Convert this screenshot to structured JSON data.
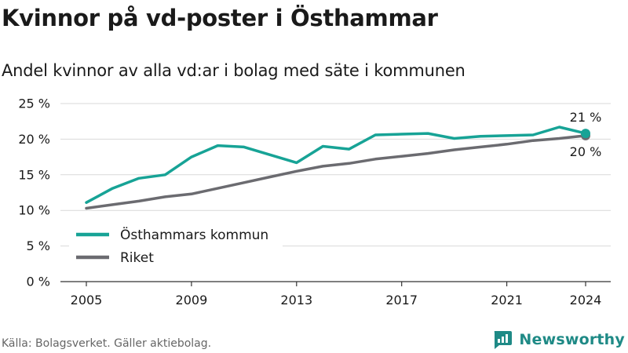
{
  "header": {
    "title": "Kvinnor på vd-poster i Östhammar",
    "subtitle": "Andel kvinnor av alla vd:ar i bolag med säte i kommunen"
  },
  "footer": {
    "source": "Källa: Bolagsverket. Gäller aktiebolag.",
    "brand": "Newsworthy"
  },
  "colors": {
    "osthammar": "#17a396",
    "riket": "#6b6b70",
    "grid": "#d9d9d9",
    "axis": "#333333",
    "text": "#1a1a1a"
  },
  "chart_data": {
    "type": "line",
    "title": "Kvinnor på vd-poster i Östhammar",
    "subtitle": "Andel kvinnor av alla vd:ar i bolag med säte i kommunen",
    "xlabel": "",
    "ylabel": "",
    "x": [
      2005,
      2006,
      2007,
      2008,
      2009,
      2010,
      2011,
      2012,
      2013,
      2014,
      2015,
      2016,
      2017,
      2018,
      2019,
      2020,
      2021,
      2022,
      2023,
      2024
    ],
    "xlim": [
      2005,
      2024
    ],
    "x_ticks": [
      2005,
      2009,
      2013,
      2017,
      2021,
      2024
    ],
    "ylim": [
      0,
      25
    ],
    "y_ticks": [
      0,
      5,
      10,
      15,
      20,
      25
    ],
    "y_tick_labels": [
      "0 %",
      "5 %",
      "10 %",
      "15 %",
      "20 %",
      "25 %"
    ],
    "grid": true,
    "legend_position": "bottom-left",
    "series": [
      {
        "name": "Östhammars kommun",
        "values": [
          11.1,
          13.1,
          14.5,
          15.0,
          17.5,
          19.1,
          18.9,
          17.8,
          16.7,
          19.0,
          18.6,
          20.6,
          20.7,
          20.8,
          20.1,
          20.4,
          20.5,
          20.6,
          21.7,
          20.8
        ],
        "end_label": "21 %",
        "end_marker": true
      },
      {
        "name": "Riket",
        "values": [
          10.3,
          10.8,
          11.3,
          11.9,
          12.3,
          13.1,
          13.9,
          14.7,
          15.5,
          16.2,
          16.6,
          17.2,
          17.6,
          18.0,
          18.5,
          18.9,
          19.3,
          19.8,
          20.1,
          20.5
        ],
        "end_label": "20 %",
        "end_marker": true
      }
    ]
  }
}
